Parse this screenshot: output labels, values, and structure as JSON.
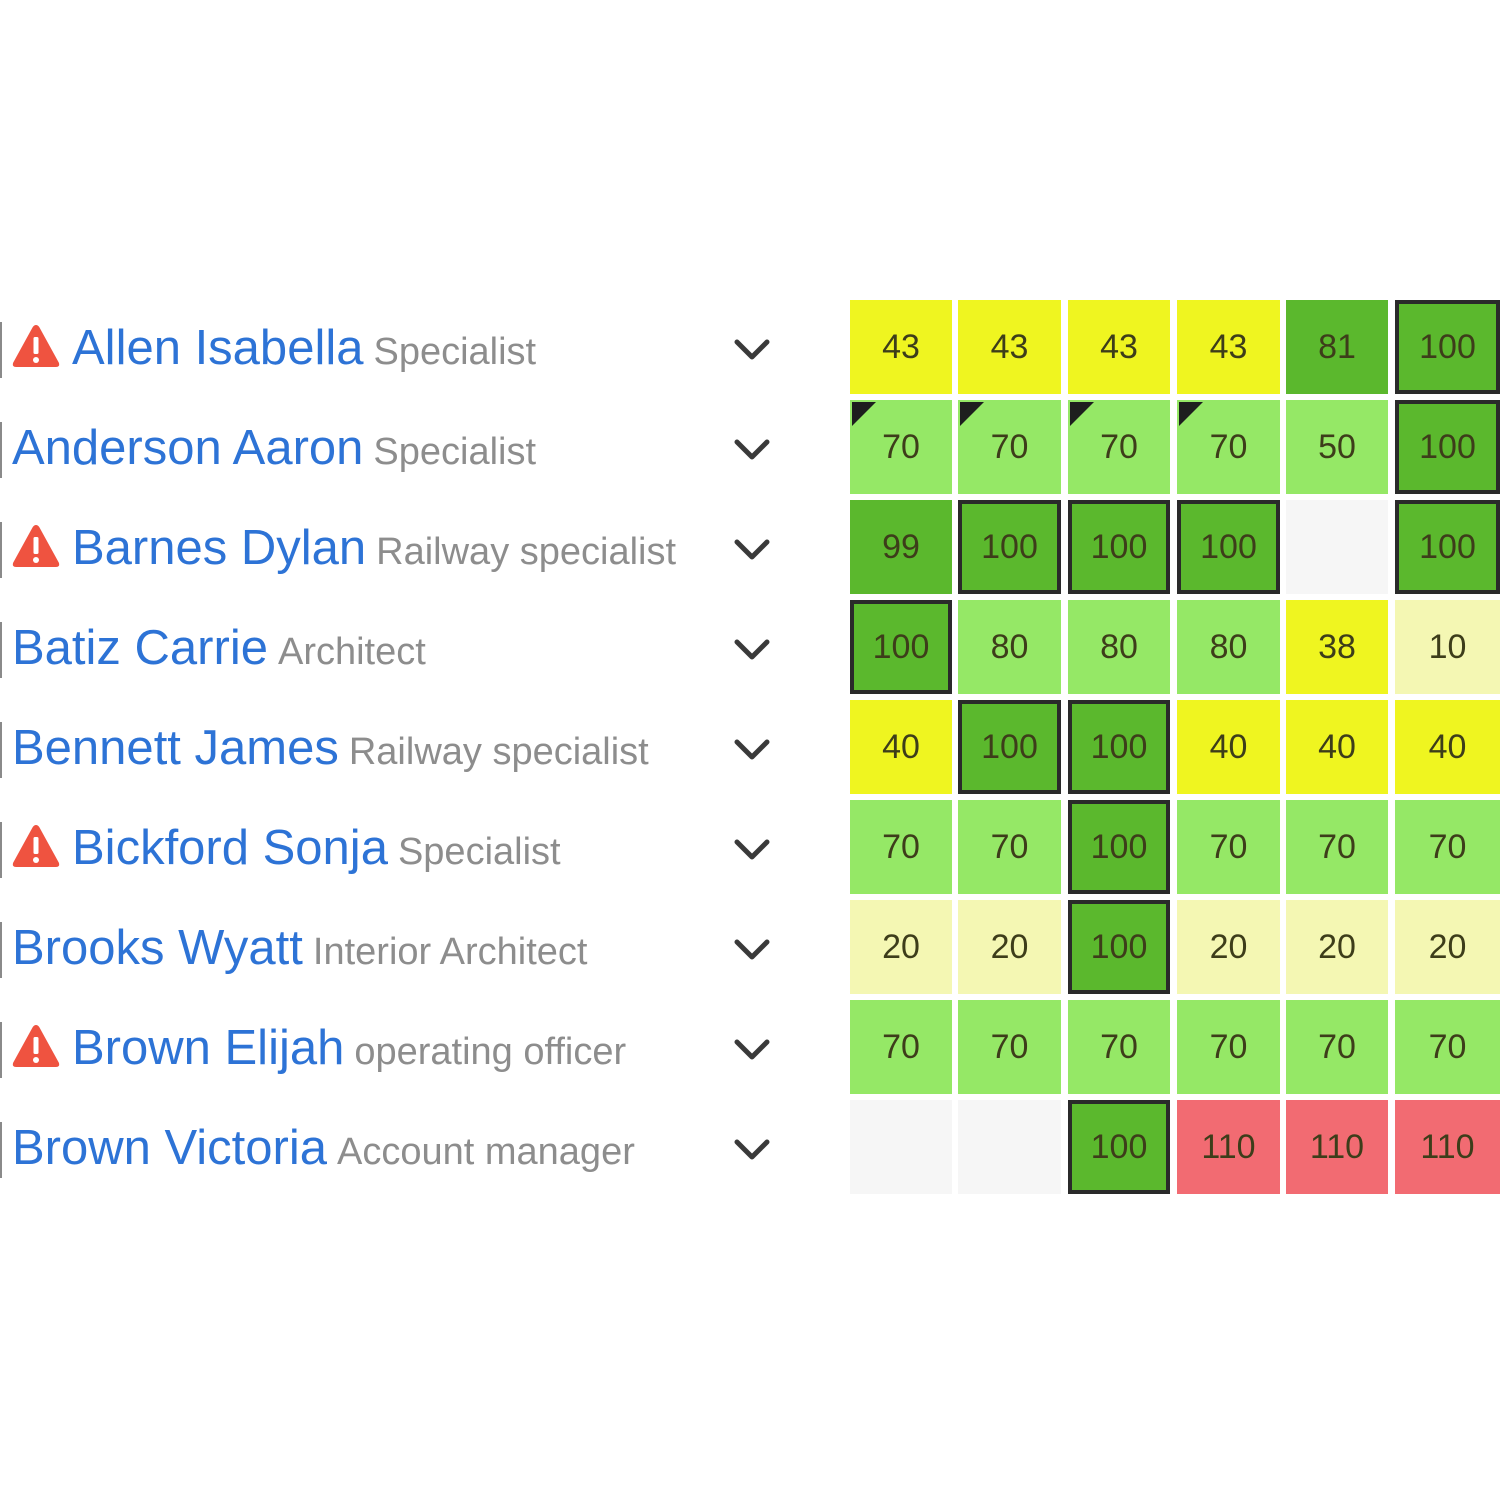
{
  "people": [
    {
      "name": "Allen Isabella",
      "role": "Specialist",
      "warning": true,
      "warning_icon": "warning-triangle-icon",
      "expand_icon": "chevron-down-icon"
    },
    {
      "name": "Anderson Aaron",
      "role": "Specialist",
      "warning": false,
      "expand_icon": "chevron-down-icon"
    },
    {
      "name": "Barnes Dylan",
      "role": "Railway specialist",
      "warning": true,
      "warning_icon": "warning-triangle-icon",
      "expand_icon": "chevron-down-icon"
    },
    {
      "name": "Batiz Carrie",
      "role": "Architect",
      "warning": false,
      "expand_icon": "chevron-down-icon"
    },
    {
      "name": "Bennett James",
      "role": "Railway specialist",
      "warning": false,
      "expand_icon": "chevron-down-icon"
    },
    {
      "name": "Bickford Sonja",
      "role": "Specialist",
      "warning": true,
      "warning_icon": "warning-triangle-icon",
      "expand_icon": "chevron-down-icon"
    },
    {
      "name": "Brooks Wyatt",
      "role": "Interior Architect",
      "warning": false,
      "expand_icon": "chevron-down-icon"
    },
    {
      "name": "Brown Elijah",
      "role": "operating officer",
      "warning": true,
      "warning_icon": "warning-triangle-icon",
      "expand_icon": "chevron-down-icon"
    },
    {
      "name": "Brown Victoria",
      "role": "Account manager",
      "warning": false,
      "expand_icon": "chevron-down-icon"
    }
  ],
  "allocation_grid": [
    [
      "43",
      "43",
      "43",
      "43",
      "81",
      "100"
    ],
    [
      "70",
      "70",
      "70",
      "70",
      "50",
      "100"
    ],
    [
      "99",
      "100",
      "100",
      "100",
      "",
      "100"
    ],
    [
      "100",
      "80",
      "80",
      "80",
      "38",
      "10"
    ],
    [
      "40",
      "100",
      "100",
      "40",
      "40",
      "40"
    ],
    [
      "70",
      "70",
      "100",
      "70",
      "70",
      "70"
    ],
    [
      "20",
      "20",
      "100",
      "20",
      "20",
      "20"
    ],
    [
      "70",
      "70",
      "70",
      "70",
      "70",
      "70"
    ],
    [
      "",
      "",
      "100",
      "110",
      "110",
      "110"
    ]
  ],
  "cell_corner_flags": [
    [
      false,
      false,
      false,
      false,
      false,
      false
    ],
    [
      true,
      true,
      true,
      true,
      false,
      false
    ],
    [
      false,
      false,
      false,
      false,
      false,
      false
    ],
    [
      false,
      false,
      false,
      false,
      false,
      false
    ],
    [
      false,
      false,
      false,
      false,
      false,
      false
    ],
    [
      false,
      false,
      false,
      false,
      false,
      false
    ],
    [
      false,
      false,
      false,
      false,
      false,
      false
    ],
    [
      false,
      false,
      false,
      false,
      false,
      false
    ],
    [
      false,
      false,
      false,
      false,
      false,
      false
    ]
  ],
  "colors": {
    "name_link": "#2d73d6",
    "role_text": "#8d8d8d",
    "warning": "#ef5340",
    "chevron": "#3a3a3a",
    "empty_cell": "#f6f6f6",
    "light_yellow": "#f4f7b3",
    "yellow": "#eff520",
    "light_green": "#95e866",
    "green": "#5bb82d",
    "over_red": "#f26b72",
    "full_border": "#2a2a2a"
  }
}
